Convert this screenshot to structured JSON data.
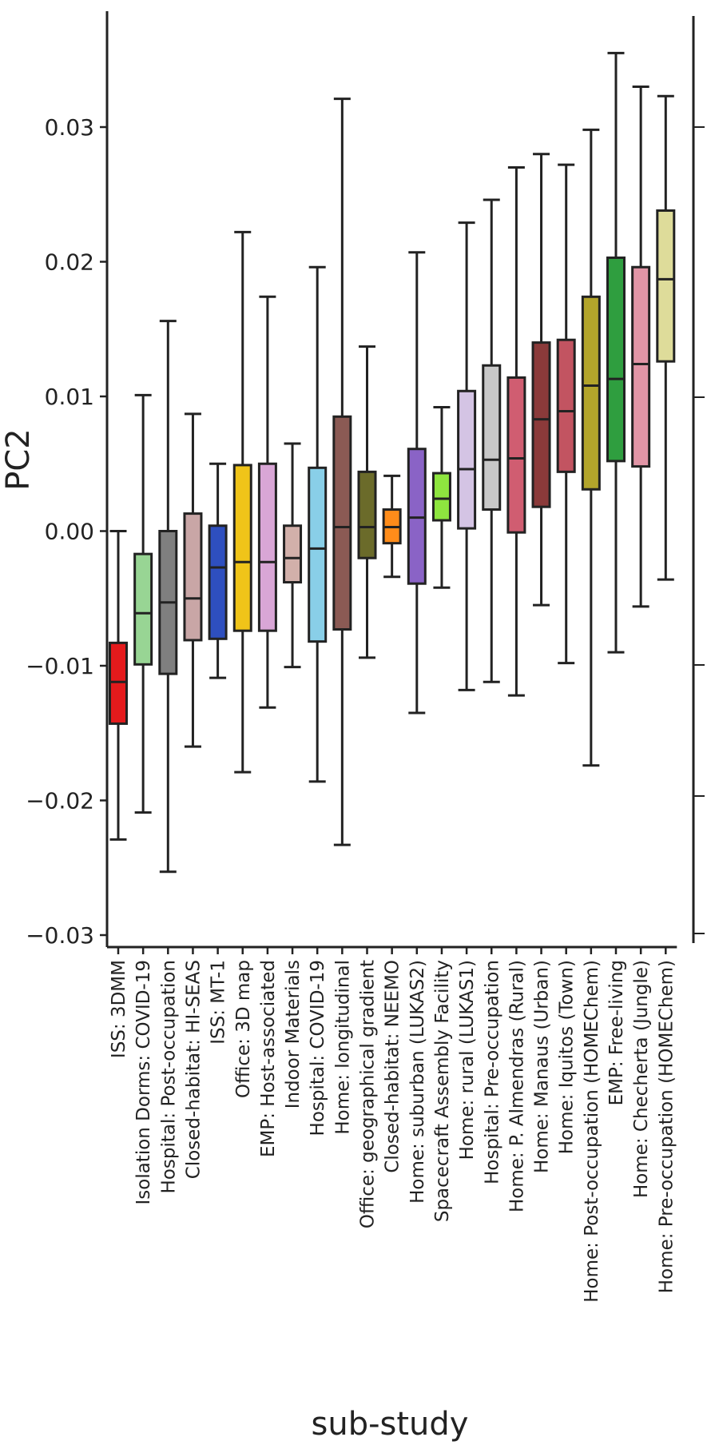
{
  "chart_data": {
    "type": "box",
    "xlabel": "sub-study",
    "ylabel": "PC2",
    "ylim": [
      -0.03,
      0.036
    ],
    "yticks": [
      -0.03,
      -0.02,
      -0.01,
      0.0,
      0.01,
      0.02,
      0.03
    ],
    "ytick_labels": [
      "−0.03",
      "−0.02",
      "−0.01",
      "0.00",
      "0.01",
      "0.02",
      "0.03"
    ],
    "grid": false,
    "legend": "none",
    "categories": [
      "ISS: 3DMM",
      "Isolation Dorms: COVID-19",
      "Hospital: Post-occupation",
      "Closed-habitat: HI-SEAS",
      "ISS: MT-1",
      "Office: 3D map",
      "EMP: Host-associated",
      "Indoor Materials",
      "Hospital: COVID-19",
      "Home: longitudinal",
      "Office: geographical gradient",
      "Closed-habitat: NEEMO",
      "Home: suburban (LUKAS2)",
      "Spacecraft Assembly Facility",
      "Home: rural (LUKAS1)",
      "Hospital: Pre-occupation",
      "Home: P. Almendras (Rural)",
      "Home: Manaus (Urban)",
      "Home: Iquitos (Town)",
      "Home: Post-occupation (HOMEChem)",
      "EMP: Free-living",
      "Home: Checherta (Jungle)",
      "Home: Pre-occupation (HOMEChem)"
    ],
    "boxes": [
      {
        "min": -0.0229,
        "q1": -0.0143,
        "median": -0.0112,
        "q3": -0.0083,
        "max": 0.0,
        "color": "#e41a1c"
      },
      {
        "min": -0.0209,
        "q1": -0.0099,
        "median": -0.0061,
        "q3": -0.0017,
        "max": 0.0101,
        "color": "#98d594"
      },
      {
        "min": -0.0253,
        "q1": -0.0106,
        "median": -0.0053,
        "q3": 0.0,
        "max": 0.0156,
        "color": "#7f7f7f"
      },
      {
        "min": -0.016,
        "q1": -0.0081,
        "median": -0.005,
        "q3": 0.0013,
        "max": 0.0087,
        "color": "#c9a6a6"
      },
      {
        "min": -0.0109,
        "q1": -0.008,
        "median": -0.0027,
        "q3": 0.0004,
        "max": 0.005,
        "color": "#2e4fbf"
      },
      {
        "min": -0.0179,
        "q1": -0.0074,
        "median": -0.0023,
        "q3": 0.0049,
        "max": 0.0222,
        "color": "#f0c419"
      },
      {
        "min": -0.0131,
        "q1": -0.0074,
        "median": -0.0023,
        "q3": 0.005,
        "max": 0.0174,
        "color": "#d9a6d6"
      },
      {
        "min": -0.0101,
        "q1": -0.0038,
        "median": -0.002,
        "q3": 0.0004,
        "max": 0.0065,
        "color": "#d2b0aa"
      },
      {
        "min": -0.0186,
        "q1": -0.0082,
        "median": -0.0013,
        "q3": 0.0047,
        "max": 0.0196,
        "color": "#89cfe8"
      },
      {
        "min": -0.0233,
        "q1": -0.0073,
        "median": 0.0003,
        "q3": 0.0085,
        "max": 0.0321,
        "color": "#8b5a54"
      },
      {
        "min": -0.0094,
        "q1": -0.002,
        "median": 0.0003,
        "q3": 0.0044,
        "max": 0.0137,
        "color": "#6b6b2a"
      },
      {
        "min": -0.0034,
        "q1": -0.0009,
        "median": 0.0003,
        "q3": 0.0016,
        "max": 0.0041,
        "color": "#ff8c1a"
      },
      {
        "min": -0.0135,
        "q1": -0.0039,
        "median": 0.001,
        "q3": 0.0061,
        "max": 0.0207,
        "color": "#8a63c6"
      },
      {
        "min": -0.0042,
        "q1": 0.0008,
        "median": 0.0024,
        "q3": 0.0043,
        "max": 0.0092,
        "color": "#8ee53f"
      },
      {
        "min": -0.0118,
        "q1": 0.0002,
        "median": 0.0046,
        "q3": 0.0104,
        "max": 0.0229,
        "color": "#d4c4e4"
      },
      {
        "min": -0.0112,
        "q1": 0.0016,
        "median": 0.0053,
        "q3": 0.0123,
        "max": 0.0246,
        "color": "#c8c8c8"
      },
      {
        "min": -0.0122,
        "q1": -0.0001,
        "median": 0.0054,
        "q3": 0.0114,
        "max": 0.027,
        "color": "#d05d71"
      },
      {
        "min": -0.0055,
        "q1": 0.0018,
        "median": 0.0083,
        "q3": 0.014,
        "max": 0.028,
        "color": "#8b3a3a"
      },
      {
        "min": -0.0098,
        "q1": 0.0044,
        "median": 0.0089,
        "q3": 0.0142,
        "max": 0.0272,
        "color": "#c25461"
      },
      {
        "min": -0.0174,
        "q1": 0.0031,
        "median": 0.0108,
        "q3": 0.0174,
        "max": 0.0298,
        "color": "#b3a52b"
      },
      {
        "min": -0.009,
        "q1": 0.0052,
        "median": 0.0113,
        "q3": 0.0203,
        "max": 0.0355,
        "color": "#2f9e3f"
      },
      {
        "min": -0.0056,
        "q1": 0.0048,
        "median": 0.0124,
        "q3": 0.0196,
        "max": 0.033,
        "color": "#e195a6"
      },
      {
        "min": -0.0036,
        "q1": 0.0126,
        "median": 0.0187,
        "q3": 0.0238,
        "max": 0.0323,
        "color": "#dedc9a"
      }
    ]
  }
}
